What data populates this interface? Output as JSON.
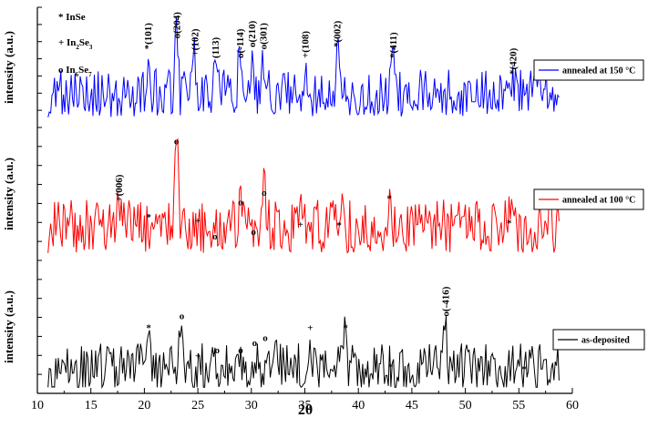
{
  "chart_data": {
    "type": "line",
    "x_axis": {
      "label": "2θ",
      "range": [
        10,
        60
      ],
      "ticks": [
        10,
        15,
        20,
        25,
        30,
        35,
        40,
        45,
        50,
        55,
        60
      ],
      "tick_labels": [
        "10",
        "15",
        "20",
        "25",
        "30",
        "35",
        "40",
        "45",
        "50",
        "55",
        "60"
      ]
    },
    "y_label": "intensity (a.u.)",
    "phase_legend": [
      {
        "marker": "*",
        "phase": "InSe"
      },
      {
        "marker": "+",
        "phase": "In",
        "sub1": "2",
        "mid": "Se",
        "sub2": "3"
      },
      {
        "marker": "o",
        "phase": "In",
        "sub1": "6",
        "mid": "Se",
        "sub2": "7"
      }
    ],
    "panels": [
      {
        "name": "annealed-150",
        "legend": "annealed at 150 °C",
        "color": "#0000ff",
        "seed": 7,
        "base": 0.28,
        "noise": 0.22,
        "peaks": [
          [
            20.3,
            0.2
          ],
          [
            23.0,
            0.72
          ],
          [
            24.7,
            0.35
          ],
          [
            26.6,
            0.35
          ],
          [
            28.9,
            0.3
          ],
          [
            30.1,
            0.42
          ],
          [
            31.1,
            0.38
          ],
          [
            35.0,
            0.28
          ],
          [
            38.0,
            0.5
          ],
          [
            43.2,
            0.4
          ],
          [
            54.4,
            0.2
          ]
        ],
        "annotations": [
          {
            "x": 20.3,
            "y": 0.68,
            "text": "*(101)",
            "vertical": true
          },
          {
            "x": 23.0,
            "y": 0.78,
            "text": "o(204)",
            "vertical": true
          },
          {
            "x": 24.7,
            "y": 0.62,
            "text": "+(102)",
            "vertical": true
          },
          {
            "x": 26.6,
            "y": 0.6,
            "text": "(113)",
            "vertical": true
          },
          {
            "x": 28.9,
            "y": 0.6,
            "text": "o(-114)",
            "vertical": true
          },
          {
            "x": 30.0,
            "y": 0.7,
            "text": "o(210)",
            "vertical": true
          },
          {
            "x": 31.1,
            "y": 0.68,
            "text": "o(301)",
            "vertical": true
          },
          {
            "x": 35.0,
            "y": 0.6,
            "text": "+(108)",
            "vertical": true
          },
          {
            "x": 38.0,
            "y": 0.7,
            "text": "*(002)",
            "vertical": true
          },
          {
            "x": 43.2,
            "y": 0.6,
            "text": "*(411)",
            "vertical": true
          },
          {
            "x": 54.4,
            "y": 0.45,
            "text": "*(420)",
            "vertical": true
          }
        ]
      },
      {
        "name": "annealed-100",
        "legend": "annealed at 100 °C",
        "color": "#ff0000",
        "seed": 19,
        "base": 0.25,
        "noise": 0.22,
        "peaks": [
          [
            17.6,
            0.22
          ],
          [
            21.2,
            0.2
          ],
          [
            23.0,
            0.85
          ],
          [
            29.0,
            0.35
          ],
          [
            31.2,
            0.45
          ],
          [
            34.6,
            0.15
          ],
          [
            38.3,
            0.2
          ],
          [
            42.9,
            0.35
          ],
          [
            54.1,
            0.2
          ]
        ],
        "annotations": [
          {
            "x": 17.6,
            "y": 0.45,
            "text": "+(006)",
            "vertical": true
          },
          {
            "x": 20.4,
            "y": 0.3,
            "text": "*"
          },
          {
            "x": 23.0,
            "y": 0.92,
            "text": "o"
          },
          {
            "x": 25.0,
            "y": 0.27,
            "text": "+"
          },
          {
            "x": 26.6,
            "y": 0.14,
            "text": "o"
          },
          {
            "x": 29.0,
            "y": 0.42,
            "text": "o"
          },
          {
            "x": 30.2,
            "y": 0.18,
            "text": "o"
          },
          {
            "x": 31.2,
            "y": 0.5,
            "text": "o"
          },
          {
            "x": 34.6,
            "y": 0.24,
            "text": "+"
          },
          {
            "x": 38.2,
            "y": 0.23,
            "text": "*"
          },
          {
            "x": 42.9,
            "y": 0.45,
            "text": "*"
          },
          {
            "x": 54.1,
            "y": 0.25,
            "text": "*"
          }
        ]
      },
      {
        "name": "as-deposited",
        "legend": "as-deposited",
        "color": "#000000",
        "seed": 31,
        "base": 0.18,
        "noise": 0.2,
        "peaks": [
          [
            20.4,
            0.3
          ],
          [
            23.4,
            0.42
          ],
          [
            31.5,
            0.28
          ],
          [
            32.2,
            0.22
          ],
          [
            35.5,
            0.3
          ],
          [
            38.8,
            0.28
          ],
          [
            48.1,
            0.45
          ]
        ],
        "annotations": [
          {
            "x": 20.4,
            "y": 0.48,
            "text": "*"
          },
          {
            "x": 23.5,
            "y": 0.58,
            "text": "o"
          },
          {
            "x": 25.0,
            "y": 0.25,
            "text": "+"
          },
          {
            "x": 26.8,
            "y": 0.3,
            "text": "o"
          },
          {
            "x": 29.0,
            "y": 0.3,
            "text": "o"
          },
          {
            "x": 30.3,
            "y": 0.36,
            "text": "o"
          },
          {
            "x": 31.3,
            "y": 0.4,
            "text": "o"
          },
          {
            "x": 35.5,
            "y": 0.48,
            "text": "+"
          },
          {
            "x": 38.8,
            "y": 0.48,
            "text": "*"
          },
          {
            "x": 43.0,
            "y": 0.16,
            "text": "*"
          },
          {
            "x": 48.1,
            "y": 0.6,
            "text": "o(-416)",
            "vertical": true
          },
          {
            "x": 55.5,
            "y": 0.14,
            "text": "*"
          }
        ]
      }
    ]
  }
}
